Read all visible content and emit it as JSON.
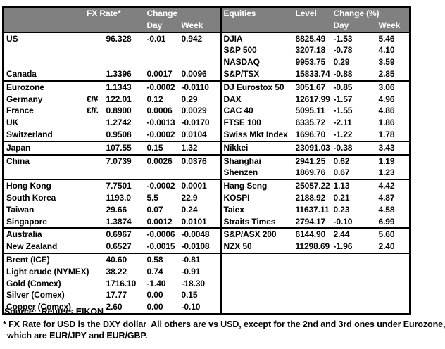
{
  "colors": {
    "header_bg": "#808080",
    "header_text": "#ffffff",
    "border": "#000000",
    "text": "#000000"
  },
  "table": {
    "header": {
      "fx_rate": "FX Rate*",
      "change": "Change",
      "day": "Day",
      "week": "Week",
      "equities": "Equities",
      "level": "Level",
      "change_pct": "Change (%)",
      "day2": "Day",
      "week2": "Week"
    },
    "rows": [
      {
        "name": "US",
        "sym": "",
        "fx": "96.328",
        "fx_day": "-0.01",
        "fx_week": "0.942",
        "eq": "DJIA",
        "level": "8825.49",
        "eq_day": "-1.53",
        "eq_week": "5.46",
        "indent": false,
        "section_end": false
      },
      {
        "name": "",
        "sym": "",
        "fx": "",
        "fx_day": "",
        "fx_week": "",
        "eq": "S&P 500",
        "level": "3207.18",
        "eq_day": "-0.78",
        "eq_week": "4.10",
        "indent": false,
        "section_end": false
      },
      {
        "name": "",
        "sym": "",
        "fx": "",
        "fx_day": "",
        "fx_week": "",
        "eq": "NASDAQ",
        "level": "9953.75",
        "eq_day": "0.29",
        "eq_week": "3.59",
        "indent": false,
        "section_end": false
      },
      {
        "name": "Canada",
        "sym": "",
        "fx": "1.3396",
        "fx_day": "0.0017",
        "fx_week": "0.0096",
        "eq": "S&P/TSX",
        "level": "15833.74",
        "eq_day": "-0.88",
        "eq_week": "2.85",
        "indent": false,
        "section_end": true
      },
      {
        "name": "Eurozone",
        "sym": "",
        "fx": "1.1343",
        "fx_day": "-0.0002",
        "fx_week": "-0.0110",
        "eq": "DJ Eurostox 50",
        "level": "3051.67",
        "eq_day": "-0.85",
        "eq_week": "3.06",
        "indent": false,
        "section_end": false
      },
      {
        "name": "Germany",
        "sym": "€/¥",
        "fx": "122.01",
        "fx_day": "0.12",
        "fx_week": "0.29",
        "eq": "DAX",
        "level": "12617.99",
        "eq_day": "-1.57",
        "eq_week": "4.96",
        "indent": true,
        "section_end": false
      },
      {
        "name": "France",
        "sym": "€/£",
        "fx": "0.8900",
        "fx_day": "0.0006",
        "fx_week": "0.0029",
        "eq": "CAC 40",
        "level": "5095.11",
        "eq_day": "-1.55",
        "eq_week": "4.86",
        "indent": true,
        "section_end": false
      },
      {
        "name": "UK",
        "sym": "",
        "fx": "1.2742",
        "fx_day": "-0.0013",
        "fx_week": "-0.0170",
        "eq": "FTSE 100",
        "level": "6335.72",
        "eq_day": "-2.11",
        "eq_week": "1.86",
        "indent": false,
        "section_end": false
      },
      {
        "name": "Switzerland",
        "sym": "",
        "fx": "0.9508",
        "fx_day": "-0.0002",
        "fx_week": "0.0104",
        "eq": "Swiss Mkt Index",
        "level": "1696.70",
        "eq_day": "-1.22",
        "eq_week": "1.78",
        "indent": false,
        "section_end": true
      },
      {
        "name": "Japan",
        "sym": "",
        "fx": "107.55",
        "fx_day": "0.15",
        "fx_week": "1.32",
        "eq": "Nikkei",
        "level": "23091.03",
        "eq_day": "-0.38",
        "eq_week": "3.43",
        "indent": false,
        "section_end": true
      },
      {
        "name": "China",
        "sym": "",
        "fx": "7.0739",
        "fx_day": "0.0026",
        "fx_week": "0.0376",
        "eq": "Shanghai",
        "level": "2941.25",
        "eq_day": "0.62",
        "eq_week": "1.19",
        "indent": false,
        "section_end": false
      },
      {
        "name": "",
        "sym": "",
        "fx": "",
        "fx_day": "",
        "fx_week": "",
        "eq": "Shenzen",
        "level": "1869.76",
        "eq_day": "0.67",
        "eq_week": "1.23",
        "indent": false,
        "section_end": true
      },
      {
        "name": "Hong Kong",
        "sym": "",
        "fx": "7.7501",
        "fx_day": "-0.0002",
        "fx_week": "0.0001",
        "eq": "Hang Seng",
        "level": "25057.22",
        "eq_day": "1.13",
        "eq_week": "4.42",
        "indent": false,
        "section_end": false
      },
      {
        "name": "South Korea",
        "sym": "",
        "fx": "1193.0",
        "fx_day": "5.5",
        "fx_week": "22.9",
        "eq": "KOSPI",
        "level": "2188.92",
        "eq_day": "0.21",
        "eq_week": "4.87",
        "indent": false,
        "section_end": false
      },
      {
        "name": "Taiwan",
        "sym": "",
        "fx": "29.66",
        "fx_day": "0.07",
        "fx_week": "0.24",
        "eq": "Taiex",
        "level": "11637.11",
        "eq_day": "0.23",
        "eq_week": "4.58",
        "indent": false,
        "section_end": false
      },
      {
        "name": "Singapore",
        "sym": "",
        "fx": "1.3874",
        "fx_day": "0.0012",
        "fx_week": "0.0101",
        "eq": "Straits Times",
        "level": "2794.17",
        "eq_day": "-0.10",
        "eq_week": "6.99",
        "indent": false,
        "section_end": true
      },
      {
        "name": "Australia",
        "sym": "",
        "fx": "0.6967",
        "fx_day": "-0.0006",
        "fx_week": "-0.0048",
        "eq": "S&P/ASX  200",
        "level": "6144.90",
        "eq_day": "2.44",
        "eq_week": "5.60",
        "indent": false,
        "section_end": false
      },
      {
        "name": "New Zealand",
        "sym": "",
        "fx": "0.6527",
        "fx_day": "-0.0015",
        "fx_week": "-0.0108",
        "eq": "NZX 50",
        "level": "11298.69",
        "eq_day": "-1.96",
        "eq_week": "2.40",
        "indent": false,
        "section_end": true
      },
      {
        "name": "Brent (ICE)",
        "sym": "",
        "fx": "40.60",
        "fx_day": "0.58",
        "fx_week": "-0.81",
        "eq": "",
        "level": "",
        "eq_day": "",
        "eq_week": "",
        "indent": false,
        "section_end": false
      },
      {
        "name": "Light crude (NYMEX)",
        "sym": "",
        "fx": "38.22",
        "fx_day": "0.74",
        "fx_week": "-0.91",
        "eq": "",
        "level": "",
        "eq_day": "",
        "eq_week": "",
        "indent": false,
        "section_end": false
      },
      {
        "name": "Gold (Comex)",
        "sym": "",
        "fx": "1716.10",
        "fx_day": "-1.40",
        "fx_week": "-18.30",
        "eq": "",
        "level": "",
        "eq_day": "",
        "eq_week": "",
        "indent": false,
        "section_end": false
      },
      {
        "name": "Silver (Comex)",
        "sym": "",
        "fx": "17.77",
        "fx_day": "0.00",
        "fx_week": "0.15",
        "eq": "",
        "level": "",
        "eq_day": "",
        "eq_week": "",
        "indent": false,
        "section_end": false
      },
      {
        "name": "Copper (Comex)",
        "sym": "",
        "fx": "2.60",
        "fx_day": "0.00",
        "fx_week": "-0.10",
        "eq": "",
        "level": "",
        "eq_day": "",
        "eq_week": "",
        "indent": false,
        "section_end": false
      }
    ]
  },
  "footer": {
    "source": "Source:  Reuters EIKON.",
    "note1": "* FX Rate for USD is the DXY dollar  All others are vs USD, except for the 2nd and 3rd ones under Eurozone,",
    "note2": "which are EUR/JPY and EUR/GBP."
  }
}
